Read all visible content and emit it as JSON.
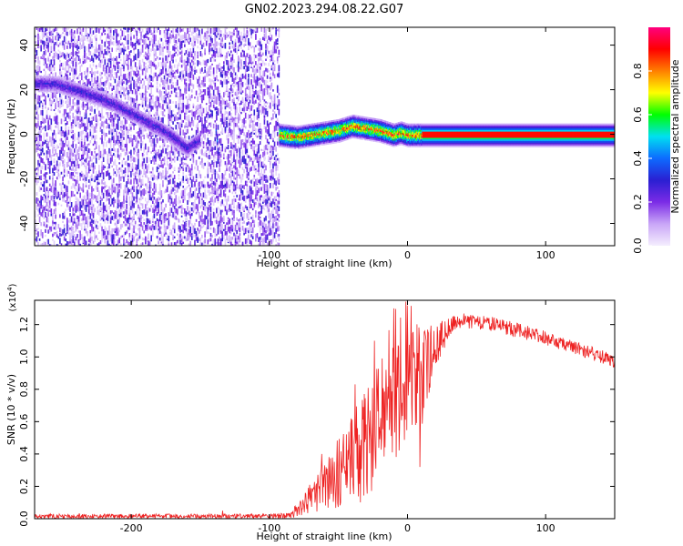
{
  "figure_title": "GN02.2023.294.08.22.G07",
  "chart_data": [
    {
      "type": "heatmap",
      "title": "",
      "xlabel": "Height of straight line (km)",
      "ylabel": "Frequency (Hz)",
      "xlim": [
        -270,
        150
      ],
      "ylim": [
        -50,
        48
      ],
      "xticks": [
        -200,
        -100,
        0,
        100
      ],
      "yticks": [
        -40,
        -20,
        0,
        20,
        40
      ],
      "colorbar": {
        "label": "Normalized spectral amplitude",
        "range": [
          0.0,
          1.0
        ],
        "ticks": [
          0.0,
          0.2,
          0.4,
          0.6,
          0.8
        ],
        "colormap": [
          "#f4eefe",
          "#c9a6f7",
          "#7b2be6",
          "#2a1fd2",
          "#0d6bff",
          "#00e0f0",
          "#00ff00",
          "#ffff00",
          "#ff7f00",
          "#ff0000",
          "#ff007f"
        ]
      },
      "noise_region": {
        "x_range": [
          -270,
          -93
        ],
        "y_range": [
          -50,
          48
        ],
        "mean_amplitude": 0.15
      },
      "features": [
        {
          "name": "descending trace",
          "points": [
            [
              -270,
              23
            ],
            [
              -255,
              23
            ],
            [
              -240,
              20
            ],
            [
              -225,
              17
            ],
            [
              -210,
              13
            ],
            [
              -195,
              8
            ],
            [
              -180,
              3
            ],
            [
              -170,
              -1
            ],
            [
              -160,
              -6
            ],
            [
              -150,
              -2
            ]
          ],
          "amplitude": 0.3
        },
        {
          "name": "spot",
          "points": [
            [
              -139,
              2
            ],
            [
              -138,
              -3
            ]
          ],
          "amplitude": 0.4
        },
        {
          "name": "dominant line",
          "points": [
            [
              -93,
              0
            ],
            [
              -80,
              -1
            ],
            [
              -70,
              0
            ],
            [
              -60,
              1
            ],
            [
              -50,
              2
            ],
            [
              -40,
              4
            ],
            [
              -30,
              3
            ],
            [
              -20,
              2
            ],
            [
              -10,
              0
            ],
            [
              -5,
              1
            ],
            [
              0,
              0
            ],
            [
              10,
              0
            ],
            [
              150,
              0
            ]
          ],
          "amplitude": 0.85
        }
      ]
    },
    {
      "type": "line",
      "title": "",
      "xlabel": "Height of straight line (km)",
      "ylabel": "SNR (10 * v/v)",
      "y_multiplier": "(x10^4)",
      "y_multiplier_base": "(x10",
      "y_multiplier_exp": "4",
      "y_multiplier_close": ")",
      "xlim": [
        -270,
        150
      ],
      "ylim": [
        0,
        1.35
      ],
      "xticks": [
        -200,
        -100,
        0,
        100
      ],
      "yticks": [
        0.0,
        0.2,
        0.4,
        0.6,
        0.8,
        1.0,
        1.2
      ],
      "series": [
        {
          "color": "#ee2222",
          "envelope": {
            "x": [
              -270,
              -200,
              -130,
              -100,
              -85,
              -80,
              -70,
              -60,
              -50,
              -40,
              -30,
              -20,
              -10,
              0,
              10,
              20,
              30,
              40,
              60,
              80,
              100,
              120,
              140,
              150
            ],
            "low": [
              0.0,
              0.0,
              0.0,
              0.0,
              0.0,
              0.0,
              0.02,
              0.04,
              0.05,
              0.07,
              0.12,
              0.25,
              0.35,
              0.5,
              0.55,
              0.9,
              1.13,
              1.18,
              1.16,
              1.12,
              1.07,
              1.02,
              0.96,
              0.93
            ],
            "high": [
              0.03,
              0.03,
              0.03,
              0.03,
              0.04,
              0.1,
              0.22,
              0.35,
              0.5,
              0.65,
              0.8,
              1.05,
              1.3,
              1.36,
              1.2,
              1.2,
              1.25,
              1.27,
              1.25,
              1.21,
              1.16,
              1.1,
              1.05,
              1.0
            ]
          },
          "spikes": [
            {
              "x": -134,
              "y": 0.05
            },
            {
              "x": -62,
              "y": 0.4
            },
            {
              "x": -38,
              "y": 0.83
            },
            {
              "x": -24,
              "y": 1.1
            },
            {
              "x": -10,
              "y": 1.3
            },
            {
              "x": 9,
              "y": 1.37
            },
            {
              "x": 9,
              "y": 0.32
            }
          ]
        }
      ]
    }
  ]
}
